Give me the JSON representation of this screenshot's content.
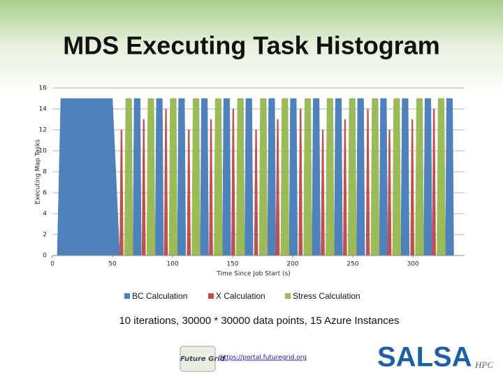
{
  "chart_data": {
    "type": "area",
    "title": "MDS Executing Task Histogram",
    "xlabel": "Time Since Job Start (s)",
    "ylabel": "Executing Map Tasks",
    "xlim": [
      0,
      343
    ],
    "ylim": [
      0,
      16
    ],
    "xticks": [
      0,
      50,
      100,
      150,
      200,
      250,
      300
    ],
    "yticks": [
      0,
      2,
      4,
      6,
      8,
      10,
      12,
      14,
      16
    ],
    "grid": true,
    "legend": "bottom",
    "series": [
      {
        "name": "BC Calculation",
        "color": "#4f81bd",
        "x": [
          4,
          7,
          50,
          56,
          67,
          68,
          73,
          74,
          85.5,
          86.5,
          91.5,
          92.5,
          104,
          105,
          110,
          111,
          123,
          124,
          129,
          130,
          141.5,
          142.5,
          147.5,
          148.5,
          160,
          161,
          166,
          167,
          179,
          180,
          185,
          186,
          197,
          198,
          203,
          204,
          216,
          217,
          222,
          223,
          234.5,
          235.5,
          240.5,
          241.5,
          253,
          254,
          259,
          260,
          272,
          273,
          278,
          279,
          290,
          291,
          296,
          297,
          309,
          310,
          315,
          316,
          327,
          328,
          333,
          334
        ],
        "values": [
          0,
          15,
          15,
          0,
          0,
          15,
          15,
          0,
          0,
          15,
          15,
          0,
          0,
          15,
          15,
          0,
          0,
          15,
          15,
          0,
          0,
          15,
          15,
          0,
          0,
          15,
          15,
          0,
          0,
          15,
          15,
          0,
          0,
          15,
          15,
          0,
          0,
          15,
          15,
          0,
          0,
          15,
          15,
          0,
          0,
          15,
          15,
          0,
          0,
          15,
          15,
          0,
          0,
          15,
          15,
          0,
          0,
          15,
          15,
          0,
          0,
          15,
          15,
          0
        ]
      },
      {
        "name": "X Calculation",
        "color": "#c0504d",
        "x": [
          56,
          57,
          58,
          59,
          74.5,
          75.5,
          76.5,
          77.5,
          93,
          94,
          95,
          96,
          112,
          113,
          114,
          115,
          130.5,
          131.5,
          132.5,
          133.5,
          149,
          150,
          151,
          152,
          168,
          169,
          170,
          171,
          186,
          187,
          188,
          189,
          205,
          206,
          207,
          208,
          223.5,
          224.5,
          225.5,
          226.5,
          242,
          243,
          244,
          245,
          261,
          262,
          263,
          264,
          279,
          280,
          281,
          282,
          298,
          299,
          300,
          301,
          316,
          317,
          318,
          319
        ],
        "values": [
          0,
          12,
          12,
          0,
          0,
          13,
          13,
          0,
          0,
          14,
          14,
          0,
          0,
          12,
          12,
          0,
          0,
          13,
          13,
          0,
          0,
          14,
          14,
          0,
          0,
          12,
          12,
          0,
          0,
          13,
          13,
          0,
          0,
          14,
          14,
          0,
          0,
          12,
          12,
          0,
          0,
          13,
          13,
          0,
          0,
          14,
          14,
          0,
          0,
          12,
          12,
          0,
          0,
          13,
          13,
          0,
          0,
          14,
          14,
          0
        ]
      },
      {
        "name": "Stress Calculation",
        "color": "#9bbb59",
        "x": [
          60,
          61,
          66,
          67,
          78.5,
          79.5,
          84.5,
          85.5,
          97,
          98,
          103,
          104,
          116,
          117,
          122,
          123,
          134.5,
          135.5,
          140.5,
          141.5,
          153,
          154,
          159,
          160,
          172,
          173,
          178,
          179,
          190,
          191,
          196,
          197,
          209,
          210,
          215,
          216,
          227.5,
          228.5,
          233.5,
          234.5,
          246,
          247,
          252,
          253,
          265,
          266,
          271,
          272,
          283,
          284,
          289,
          290,
          302,
          303,
          308,
          309,
          320,
          321,
          326,
          327
        ],
        "values": [
          0,
          15,
          15,
          0,
          0,
          15,
          15,
          0,
          0,
          15,
          15,
          0,
          0,
          15,
          15,
          0,
          0,
          15,
          15,
          0,
          0,
          15,
          15,
          0,
          0,
          15,
          15,
          0,
          0,
          15,
          15,
          0,
          0,
          15,
          15,
          0,
          0,
          15,
          15,
          0,
          0,
          15,
          15,
          0,
          0,
          15,
          15,
          0,
          0,
          15,
          15,
          0,
          0,
          15,
          15,
          0,
          0,
          15,
          15,
          0
        ]
      }
    ],
    "caption": "10 iterations, 30000 * 30000 data points, 15 Azure Instances"
  },
  "footer": {
    "logo_left": "Future Grid",
    "url": "https://portal.futuregrid.org",
    "logo_right": "SALSA",
    "logo_right_sub": "HPC"
  }
}
